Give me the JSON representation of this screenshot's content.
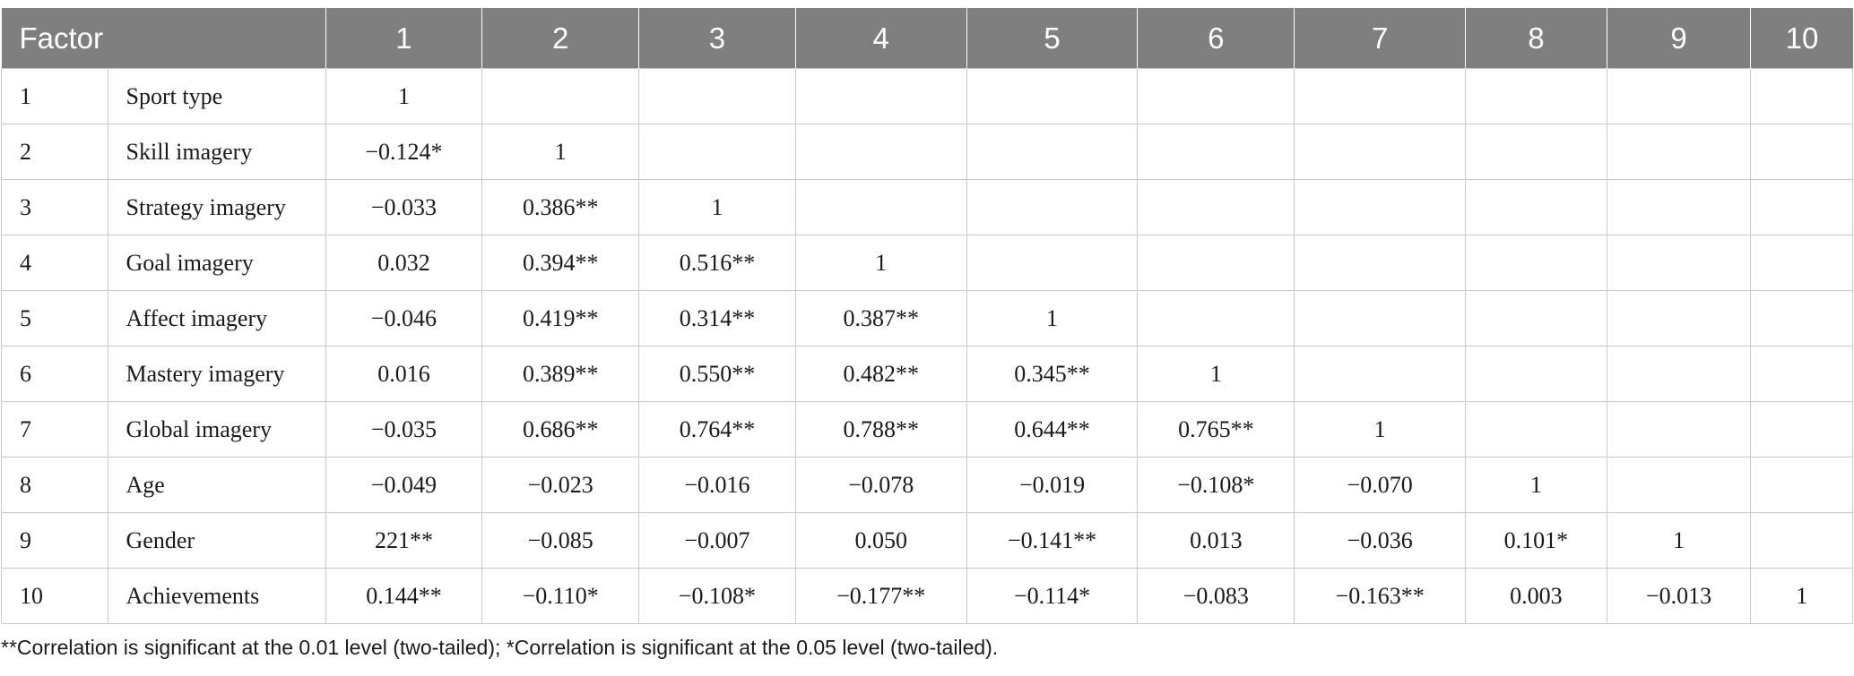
{
  "header": {
    "factor": "Factor",
    "columns": [
      "1",
      "2",
      "3",
      "4",
      "5",
      "6",
      "7",
      "8",
      "9",
      "10"
    ]
  },
  "rows": [
    {
      "index": "1",
      "label": "Sport type",
      "cells": [
        "1",
        "",
        "",
        "",
        "",
        "",
        "",
        "",
        "",
        ""
      ]
    },
    {
      "index": "2",
      "label": "Skill imagery",
      "cells": [
        "−0.124*",
        "1",
        "",
        "",
        "",
        "",
        "",
        "",
        "",
        ""
      ]
    },
    {
      "index": "3",
      "label": "Strategy imagery",
      "cells": [
        "−0.033",
        "0.386**",
        "1",
        "",
        "",
        "",
        "",
        "",
        "",
        ""
      ]
    },
    {
      "index": "4",
      "label": "Goal imagery",
      "cells": [
        "0.032",
        "0.394**",
        "0.516**",
        "1",
        "",
        "",
        "",
        "",
        "",
        ""
      ]
    },
    {
      "index": "5",
      "label": "Affect imagery",
      "cells": [
        "−0.046",
        "0.419**",
        "0.314**",
        "0.387**",
        "1",
        "",
        "",
        "",
        "",
        ""
      ]
    },
    {
      "index": "6",
      "label": "Mastery imagery",
      "cells": [
        "0.016",
        "0.389**",
        "0.550**",
        "0.482**",
        "0.345**",
        "1",
        "",
        "",
        "",
        ""
      ]
    },
    {
      "index": "7",
      "label": "Global imagery",
      "cells": [
        "−0.035",
        "0.686**",
        "0.764**",
        "0.788**",
        "0.644**",
        "0.765**",
        "1",
        "",
        "",
        ""
      ]
    },
    {
      "index": "8",
      "label": "Age",
      "cells": [
        "−0.049",
        "−0.023",
        "−0.016",
        "−0.078",
        "−0.019",
        "−0.108*",
        "−0.070",
        "1",
        "",
        ""
      ]
    },
    {
      "index": "9",
      "label": "Gender",
      "cells": [
        "221**",
        "−0.085",
        "−0.007",
        "0.050",
        "−0.141**",
        "0.013",
        "−0.036",
        "0.101*",
        "1",
        ""
      ]
    },
    {
      "index": "10",
      "label": "Achievements",
      "cells": [
        "0.144**",
        "−0.110*",
        "−0.108*",
        "−0.177**",
        "−0.114*",
        "−0.083",
        "−0.163**",
        "0.003",
        "−0.013",
        "1"
      ]
    }
  ],
  "footnote": "**Correlation is significant at the 0.01 level (two-tailed); *Correlation is significant at the 0.05 level (two-tailed)."
}
